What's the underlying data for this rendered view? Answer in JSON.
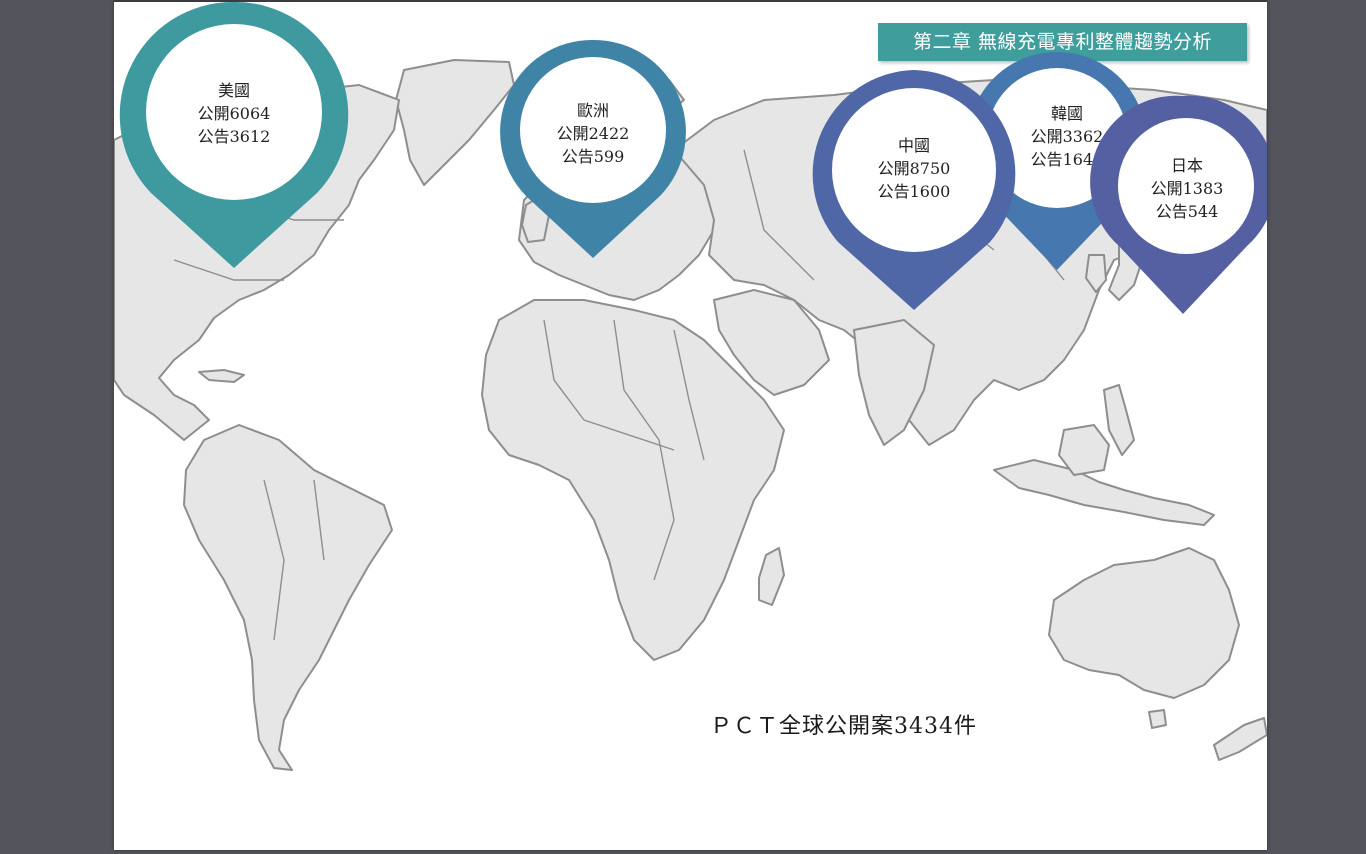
{
  "chapter_title": "第二章 無線充電專利整體趨勢分析",
  "pins": [
    {
      "id": "usa",
      "region": "美國",
      "published": "公開6064",
      "granted": "公告3612",
      "color": "#3f9a9f"
    },
    {
      "id": "europe",
      "region": "歐洲",
      "published": "公開2422",
      "granted": "公告599",
      "color": "#3f84a6"
    },
    {
      "id": "korea",
      "region": "韓國",
      "published": "公開3362",
      "granted": "公告1648",
      "color": "#4677ae"
    },
    {
      "id": "china",
      "region": "中國",
      "published": "公開8750",
      "granted": "公告1600",
      "color": "#4f67a6"
    },
    {
      "id": "japan",
      "region": "日本",
      "published": "公開1383",
      "granted": "公告544",
      "color": "#5560a3"
    }
  ],
  "footer_caption": "ＰＣＴ全球公開案3434件"
}
